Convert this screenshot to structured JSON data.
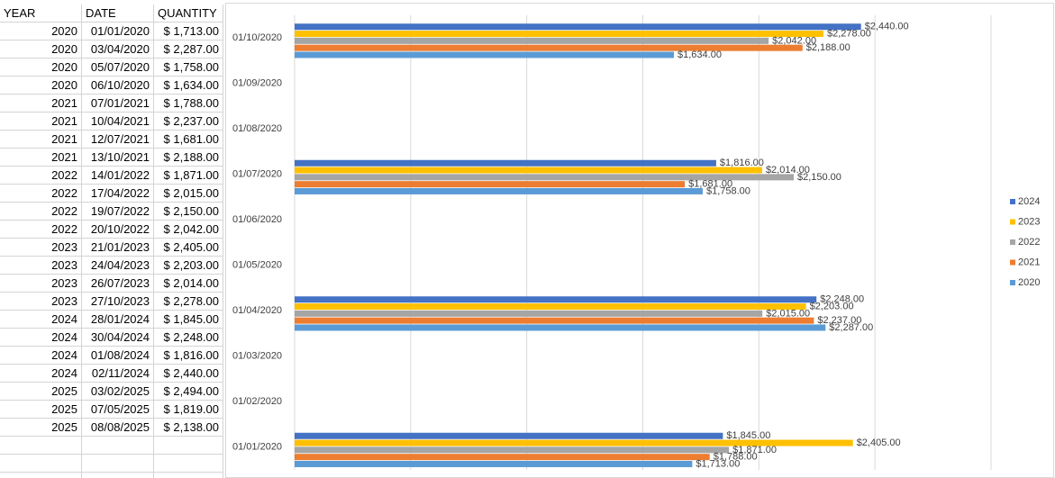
{
  "table": {
    "header": [
      "YEAR",
      "DATE",
      "QUANTITY"
    ],
    "rows": [
      [
        2020,
        "01/01/2020",
        "$ 1,713.00"
      ],
      [
        2020,
        "03/04/2020",
        "$ 2,287.00"
      ],
      [
        2020,
        "05/07/2020",
        "$ 1,758.00"
      ],
      [
        2020,
        "06/10/2020",
        "$ 1,634.00"
      ],
      [
        2021,
        "07/01/2021",
        "$ 1,788.00"
      ],
      [
        2021,
        "10/04/2021",
        "$ 2,237.00"
      ],
      [
        2021,
        "12/07/2021",
        "$ 1,681.00"
      ],
      [
        2021,
        "13/10/2021",
        "$ 2,188.00"
      ],
      [
        2022,
        "14/01/2022",
        "$ 1,871.00"
      ],
      [
        2022,
        "17/04/2022",
        "$ 2,015.00"
      ],
      [
        2022,
        "19/07/2022",
        "$ 2,150.00"
      ],
      [
        2022,
        "20/10/2022",
        "$ 2,042.00"
      ],
      [
        2023,
        "21/01/2023",
        "$ 2,405.00"
      ],
      [
        2023,
        "24/04/2023",
        "$ 2,203.00"
      ],
      [
        2023,
        "26/07/2023",
        "$ 2,014.00"
      ],
      [
        2023,
        "27/10/2023",
        "$ 2,278.00"
      ],
      [
        2024,
        "28/01/2024",
        "$ 1,845.00"
      ],
      [
        2024,
        "30/04/2024",
        "$ 2,248.00"
      ],
      [
        2024,
        "01/08/2024",
        "$ 1,816.00"
      ],
      [
        2024,
        "02/11/2024",
        "$ 2,440.00"
      ],
      [
        2025,
        "03/02/2025",
        "$ 2,494.00"
      ],
      [
        2025,
        "07/05/2025",
        "$ 1,819.00"
      ],
      [
        2025,
        "08/08/2025",
        "$ 2,138.00"
      ]
    ]
  },
  "chart_data": {
    "type": "hbar",
    "categories": [
      "01/01/2020",
      "01/02/2020",
      "01/03/2020",
      "01/04/2020",
      "01/05/2020",
      "01/06/2020",
      "01/07/2020",
      "01/08/2020",
      "01/09/2020",
      "01/10/2020"
    ],
    "xlim": [
      0,
      3000
    ],
    "xgrid": [
      0,
      500,
      1000,
      1500,
      2000,
      2500,
      3000
    ],
    "legend": "right",
    "series": [
      {
        "name": "2024",
        "color": "#4472c4",
        "values": [
          1845,
          null,
          null,
          2248,
          null,
          null,
          1816,
          null,
          null,
          2440
        ],
        "value_labels": [
          "$1,845.00",
          null,
          null,
          "$2,248.00",
          null,
          null,
          "$1,816.00",
          null,
          null,
          "$2,440.00"
        ]
      },
      {
        "name": "2023",
        "color": "#ffc000",
        "values": [
          2405,
          null,
          null,
          2203,
          null,
          null,
          2014,
          null,
          null,
          2278
        ],
        "value_labels": [
          "$2,405.00",
          null,
          null,
          "$2,203.00",
          null,
          null,
          "$2,014.00",
          null,
          null,
          "$2,278.00"
        ]
      },
      {
        "name": "2022",
        "color": "#a5a5a5",
        "values": [
          1871,
          null,
          null,
          2015,
          null,
          null,
          2150,
          null,
          null,
          2042
        ],
        "value_labels": [
          "$1,871.00",
          null,
          null,
          "$2,015.00",
          null,
          null,
          "$2,150.00",
          null,
          null,
          "$2,042.00"
        ]
      },
      {
        "name": "2021",
        "color": "#ed7d31",
        "values": [
          1788,
          null,
          null,
          2237,
          null,
          null,
          1681,
          null,
          null,
          2188
        ],
        "value_labels": [
          "$1,788.00",
          null,
          null,
          "$2,237.00",
          null,
          null,
          "$1,681.00",
          null,
          null,
          "$2,188.00"
        ]
      },
      {
        "name": "2020",
        "color": "#5b9bd5",
        "values": [
          1713,
          null,
          null,
          2287,
          null,
          null,
          1758,
          null,
          null,
          1634
        ],
        "value_labels": [
          "$1,713.00",
          null,
          null,
          "$2,287.00",
          null,
          null,
          "$1,758.00",
          null,
          null,
          "$1,634.00"
        ]
      }
    ]
  }
}
